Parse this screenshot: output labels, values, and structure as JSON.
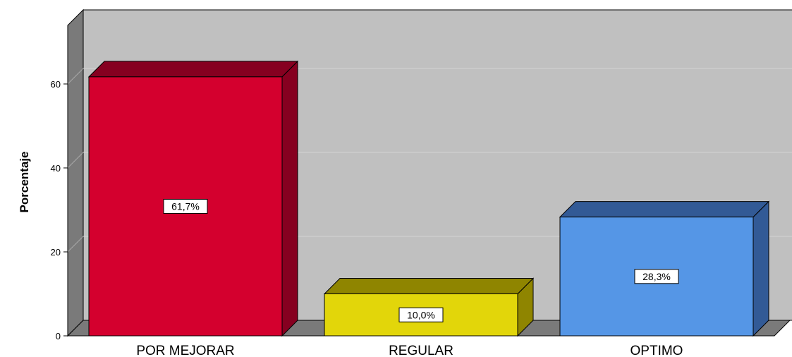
{
  "chart_data": {
    "type": "bar",
    "categories": [
      "POR MEJORAR",
      "REGULAR",
      "OPTIMO"
    ],
    "values": [
      61.7,
      10.0,
      28.3
    ],
    "data_labels": [
      "61,7%",
      "10,0%",
      "28,3%"
    ],
    "ylabel": "Porcentaje",
    "xlabel": "",
    "ylim": [
      0,
      75
    ],
    "yticks": [
      0,
      20,
      40,
      60
    ],
    "grid": true,
    "style": "3d",
    "colors": {
      "front": [
        "#d4002e",
        "#e2d60a",
        "#5596e6"
      ],
      "side": [
        "#860020",
        "#8f8500",
        "#325a96"
      ],
      "wall": "#c0c0c0",
      "wall_side": "#7a7a7a",
      "floor": "#7a7a7a",
      "gridline": "#d4d4d4"
    }
  }
}
